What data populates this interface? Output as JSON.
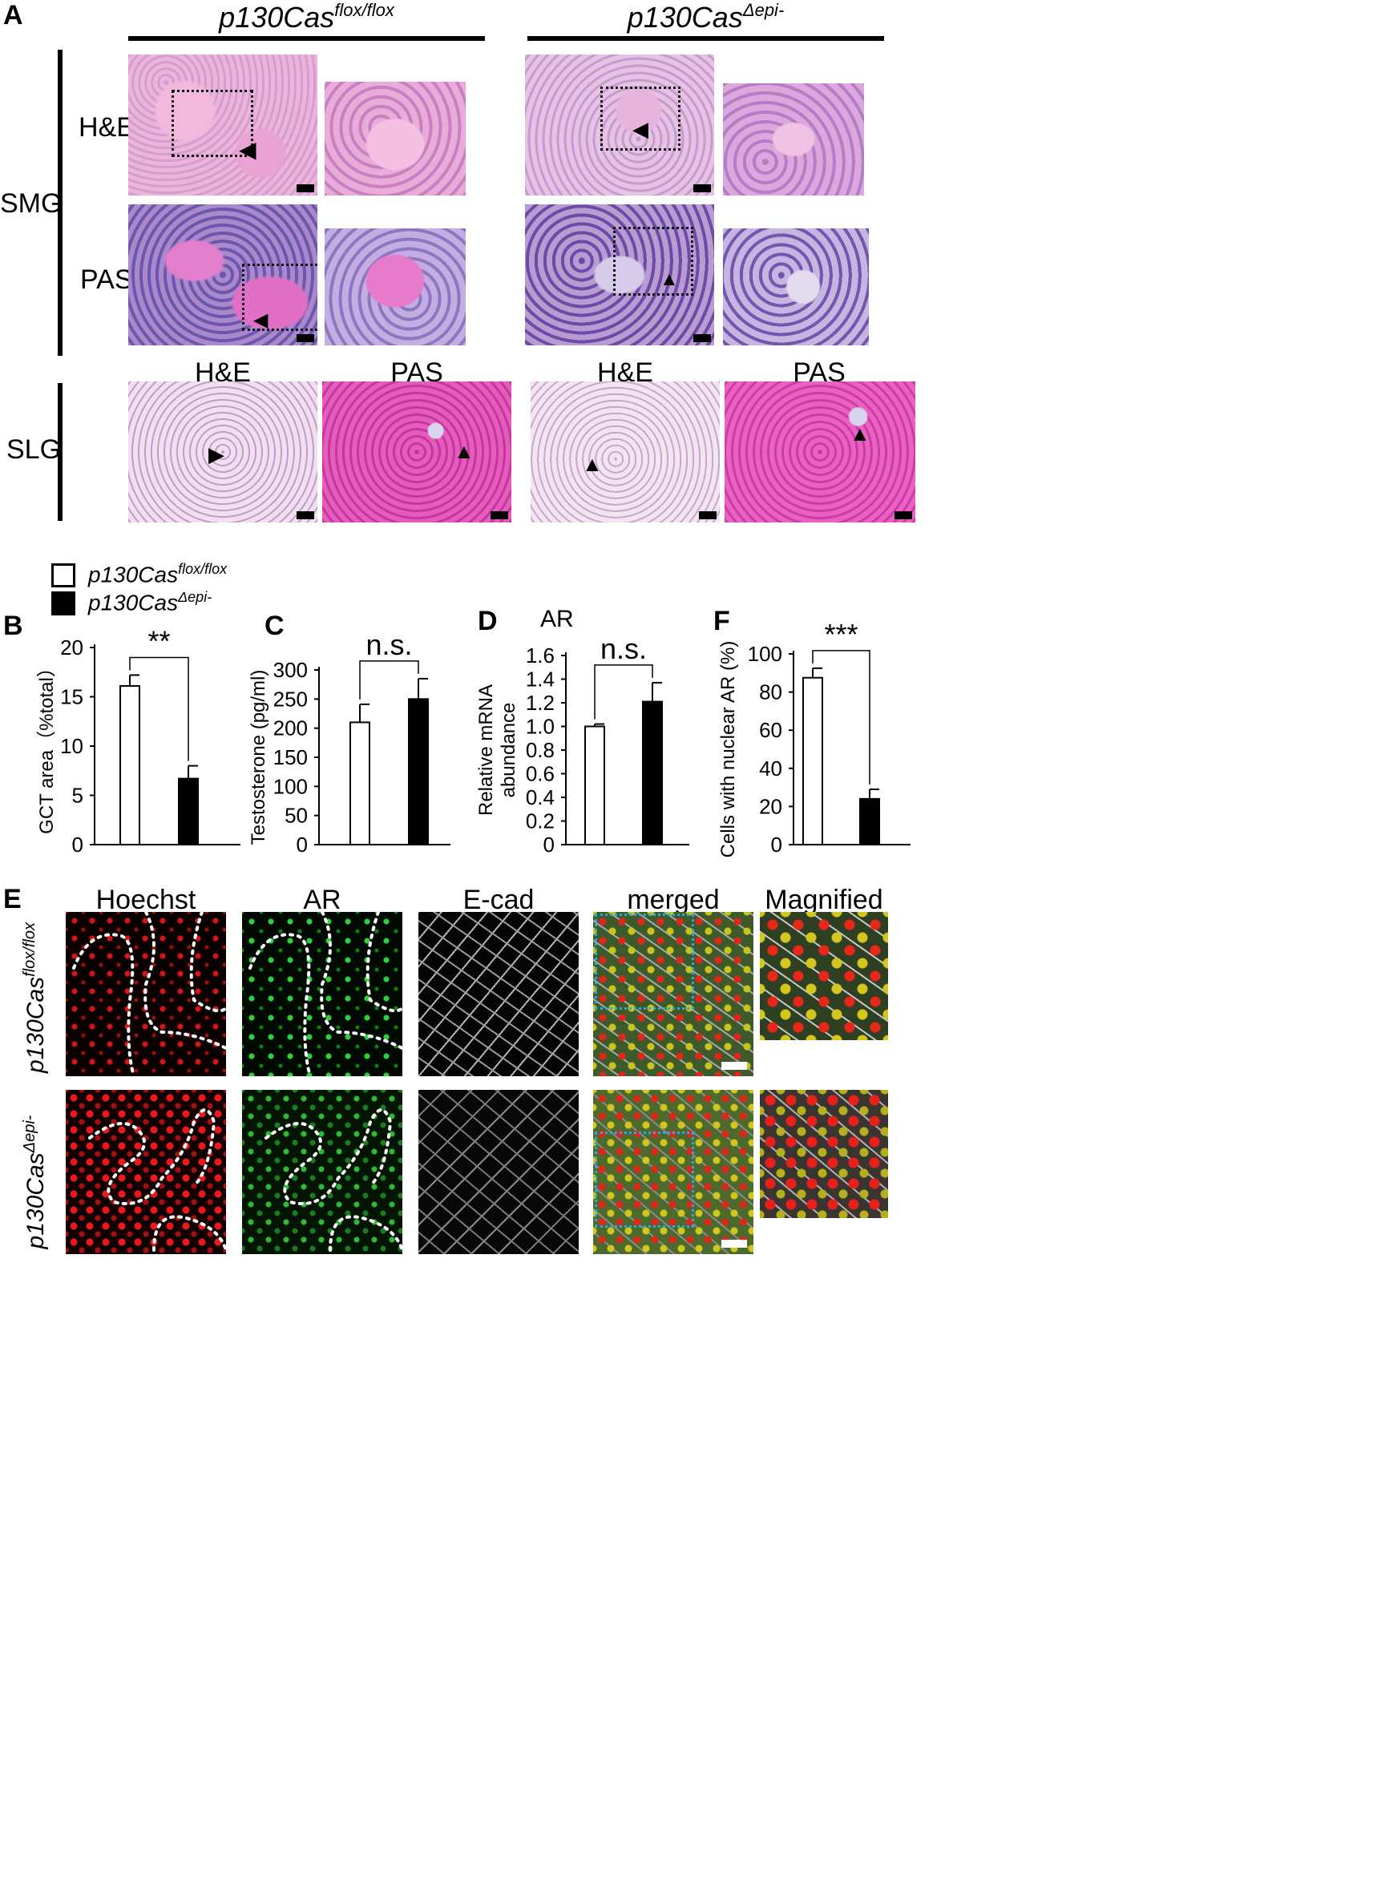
{
  "panelA": {
    "label": "A",
    "col_headers": [
      {
        "base": "p130Cas",
        "sup": "flox/flox"
      },
      {
        "base": "p130Cas",
        "sup": "Δepi-"
      }
    ],
    "row_smg": "SMG",
    "row_slg": "SLG",
    "stain_he": "H&E",
    "stain_pas": "PAS",
    "slg_cols": [
      "H&E",
      "PAS",
      "H&E",
      "PAS"
    ]
  },
  "legend": {
    "items": [
      {
        "base": "p130Cas",
        "sup": "flox/flox",
        "fill": "#ffffff"
      },
      {
        "base": "p130Cas",
        "sup": "Δepi-",
        "fill": "#000000"
      }
    ]
  },
  "colors": {
    "he_pink": "#e7a6d2",
    "pas_magenta": "#cc3aa8",
    "pas_blue": "#6f5cb3",
    "hoechst": "#e0161b",
    "ar_green": "#28c434",
    "ecad_gray": "#bdbdbd"
  },
  "chart_data": [
    {
      "panel": "B",
      "type": "bar",
      "title": "",
      "ylabel": "GCT area（%total）",
      "categories": [
        "p130Cas flox/flox",
        "p130Cas Δepi-"
      ],
      "values": [
        16.1,
        6.7
      ],
      "errors": [
        1.1,
        1.3
      ],
      "fills": [
        "#ffffff",
        "#000000"
      ],
      "ylim": [
        0,
        20
      ],
      "yticks": [
        "0",
        "5",
        "10",
        "15",
        "20"
      ],
      "significance": "**"
    },
    {
      "panel": "C",
      "type": "bar",
      "title": "",
      "ylabel": "Testosterone (pg/ml)",
      "categories": [
        "p130Cas flox/flox",
        "p130Cas Δepi-"
      ],
      "values": [
        210,
        250
      ],
      "errors": [
        31,
        35
      ],
      "fills": [
        "#ffffff",
        "#000000"
      ],
      "ylim": [
        0,
        300
      ],
      "yticks": [
        "0",
        "50",
        "100",
        "150",
        "200",
        "250",
        "300"
      ],
      "significance": "n.s."
    },
    {
      "panel": "D",
      "type": "bar",
      "title": "AR",
      "ylabel": "Relative mRNA abundance",
      "categories": [
        "p130Cas flox/flox",
        "p130Cas Δepi-"
      ],
      "values": [
        1.0,
        1.21
      ],
      "errors": [
        0.02,
        0.16
      ],
      "fills": [
        "#ffffff",
        "#000000"
      ],
      "ylim": [
        0,
        1.6
      ],
      "yticks": [
        "0",
        "0.2",
        "0.4",
        "0.6",
        "0.8",
        "1.0",
        "1.2",
        "1.4",
        "1.6"
      ],
      "significance": "n.s."
    },
    {
      "panel": "F",
      "type": "bar",
      "title": "",
      "ylabel": "Cells with nuclear AR (%)",
      "categories": [
        "p130Cas flox/flox",
        "p130Cas Δepi-"
      ],
      "values": [
        87.5,
        24
      ],
      "errors": [
        5,
        5
      ],
      "fills": [
        "#ffffff",
        "#000000"
      ],
      "ylim": [
        0,
        100
      ],
      "yticks": [
        "0",
        "20",
        "40",
        "60",
        "80",
        "100"
      ],
      "significance": "***"
    }
  ],
  "panelE": {
    "label": "E",
    "columns": [
      "Hoechst",
      "AR",
      "E-cad",
      "merged",
      "Magnified"
    ],
    "rows": [
      {
        "base": "p130Cas",
        "sup": "flox/flox"
      },
      {
        "base": "p130Cas",
        "sup": "Δepi-"
      }
    ]
  }
}
